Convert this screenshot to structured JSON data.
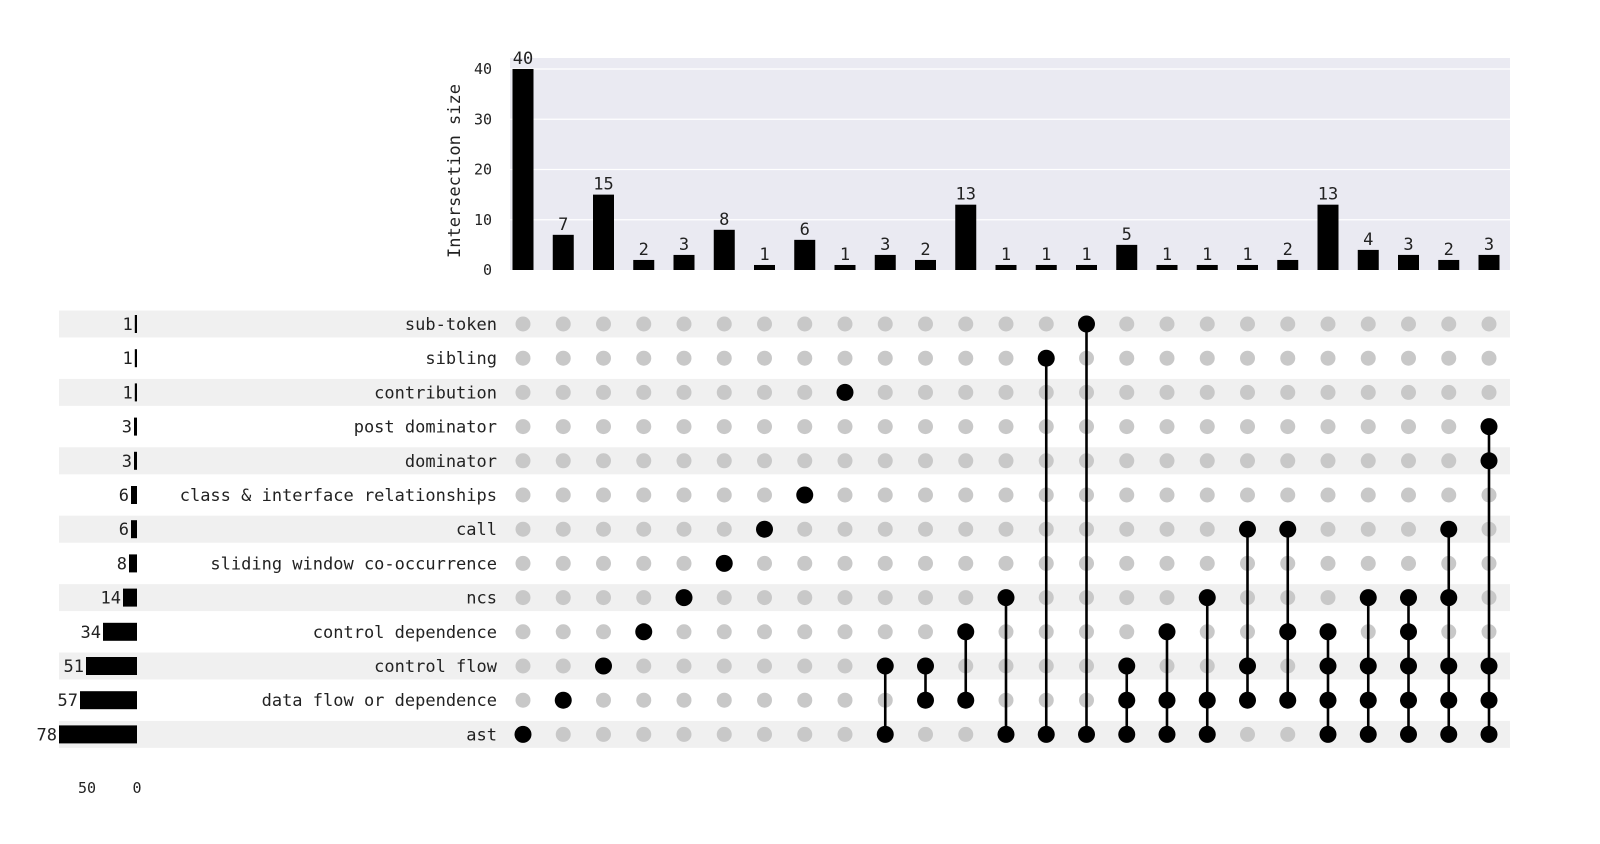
{
  "chart_data": {
    "type": "bar",
    "subtype": "upset",
    "ylabel": "Intersection size",
    "ylim": [
      0,
      42
    ],
    "yticks": [
      0,
      10,
      20,
      30,
      40
    ],
    "set_size_ticks": [
      50,
      0
    ],
    "set_size_xlim": [
      0,
      78
    ],
    "sets": [
      {
        "name": "sub-token",
        "size": 1
      },
      {
        "name": "sibling",
        "size": 1
      },
      {
        "name": "contribution",
        "size": 1
      },
      {
        "name": "post dominator",
        "size": 3
      },
      {
        "name": "dominator",
        "size": 3
      },
      {
        "name": "class & interface relationships",
        "size": 6
      },
      {
        "name": "call",
        "size": 6
      },
      {
        "name": "sliding window co-occurrence",
        "size": 8
      },
      {
        "name": "ncs",
        "size": 14
      },
      {
        "name": "control dependence",
        "size": 34
      },
      {
        "name": "control flow",
        "size": 51
      },
      {
        "name": "data flow or dependence",
        "size": 57
      },
      {
        "name": "ast",
        "size": 78
      }
    ],
    "intersections": [
      {
        "value": 40,
        "members": [
          "ast"
        ]
      },
      {
        "value": 7,
        "members": [
          "data flow or dependence"
        ]
      },
      {
        "value": 15,
        "members": [
          "control flow"
        ]
      },
      {
        "value": 2,
        "members": [
          "control dependence"
        ]
      },
      {
        "value": 3,
        "members": [
          "ncs"
        ]
      },
      {
        "value": 8,
        "members": [
          "sliding window co-occurrence"
        ]
      },
      {
        "value": 1,
        "members": [
          "call"
        ]
      },
      {
        "value": 6,
        "members": [
          "class & interface relationships"
        ]
      },
      {
        "value": 1,
        "members": [
          "contribution"
        ]
      },
      {
        "value": 3,
        "members": [
          "control flow",
          "ast"
        ]
      },
      {
        "value": 2,
        "members": [
          "control flow",
          "data flow or dependence"
        ]
      },
      {
        "value": 13,
        "members": [
          "control dependence",
          "data flow or dependence"
        ]
      },
      {
        "value": 1,
        "members": [
          "ncs",
          "ast"
        ]
      },
      {
        "value": 1,
        "members": [
          "sibling",
          "ast"
        ]
      },
      {
        "value": 1,
        "members": [
          "sub-token",
          "ast"
        ]
      },
      {
        "value": 5,
        "members": [
          "control flow",
          "data flow or dependence",
          "ast"
        ]
      },
      {
        "value": 1,
        "members": [
          "control dependence",
          "data flow or dependence",
          "ast"
        ]
      },
      {
        "value": 1,
        "members": [
          "ncs",
          "data flow or dependence",
          "ast"
        ]
      },
      {
        "value": 1,
        "members": [
          "call",
          "control flow",
          "data flow or dependence"
        ]
      },
      {
        "value": 2,
        "members": [
          "call",
          "control dependence",
          "data flow or dependence"
        ]
      },
      {
        "value": 13,
        "members": [
          "control dependence",
          "control flow",
          "data flow or dependence",
          "ast"
        ]
      },
      {
        "value": 4,
        "members": [
          "ncs",
          "control flow",
          "data flow or dependence",
          "ast"
        ]
      },
      {
        "value": 3,
        "members": [
          "ncs",
          "control dependence",
          "control flow",
          "data flow or dependence",
          "ast"
        ]
      },
      {
        "value": 2,
        "members": [
          "call",
          "ncs",
          "control flow",
          "data flow or dependence",
          "ast"
        ]
      },
      {
        "value": 3,
        "members": [
          "post dominator",
          "dominator",
          "control flow",
          "data flow or dependence",
          "ast"
        ]
      }
    ],
    "grid": true,
    "colors": {
      "bar": "#000000",
      "dot_active": "#000000",
      "dot_inactive": "#c8c8c8",
      "plot_background": "#eaeaf2",
      "gridline": "#ffffff",
      "row_stripe": "#f0f0f0"
    }
  }
}
